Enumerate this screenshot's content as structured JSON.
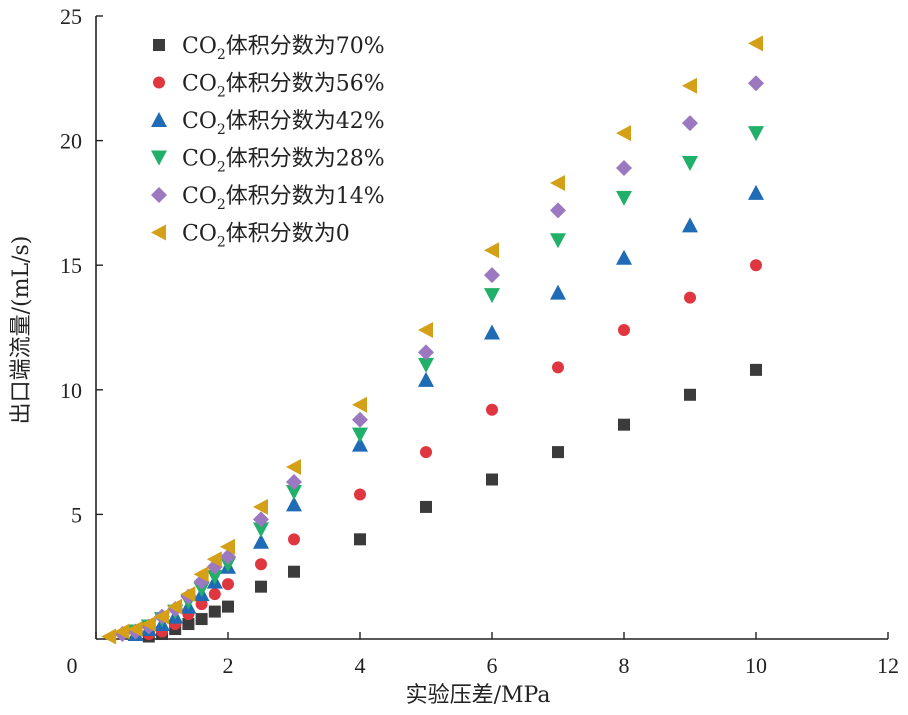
{
  "chart_data": {
    "type": "scatter",
    "title": "",
    "xlabel": "实验压差/MPa",
    "ylabel": "出口端流量/(mL/s)",
    "xlim": [
      0,
      12
    ],
    "ylim": [
      0,
      25
    ],
    "xticks": [
      0,
      2,
      4,
      6,
      8,
      10,
      12
    ],
    "yticks": [
      5,
      10,
      15,
      20,
      25
    ],
    "grid": false,
    "legend_position": "top-left",
    "series": [
      {
        "name": "CO2体积分数为70%",
        "legend_main": "CO",
        "legend_sub": "2",
        "legend_rest": "体积分数为70%",
        "marker": "square",
        "color": "#3b3b3b",
        "x": [
          0.8,
          1.0,
          1.2,
          1.4,
          1.6,
          1.8,
          2.0,
          2.5,
          3.0,
          4.0,
          5.0,
          6.0,
          7.0,
          8.0,
          9.0,
          10.0
        ],
        "y": [
          0.1,
          0.2,
          0.4,
          0.6,
          0.8,
          1.1,
          1.3,
          2.1,
          2.7,
          4.0,
          5.3,
          6.4,
          7.5,
          8.6,
          9.8,
          10.8
        ]
      },
      {
        "name": "CO2体积分数为56%",
        "legend_main": "CO",
        "legend_sub": "2",
        "legend_rest": "体积分数为56%",
        "marker": "circle",
        "color": "#e0363f",
        "x": [
          0.8,
          1.0,
          1.2,
          1.4,
          1.6,
          1.8,
          2.0,
          2.5,
          3.0,
          4.0,
          5.0,
          6.0,
          7.0,
          8.0,
          9.0,
          10.0
        ],
        "y": [
          0.2,
          0.3,
          0.6,
          1.0,
          1.4,
          1.8,
          2.2,
          3.0,
          4.0,
          5.8,
          7.5,
          9.2,
          10.9,
          12.4,
          13.7,
          15.0
        ]
      },
      {
        "name": "CO2体积分数为42%",
        "legend_main": "CO",
        "legend_sub": "2",
        "legend_rest": "体积分数为42%",
        "marker": "triangle-up",
        "color": "#1f6bb5",
        "x": [
          0.6,
          0.8,
          1.0,
          1.2,
          1.4,
          1.6,
          1.8,
          2.0,
          2.5,
          3.0,
          4.0,
          5.0,
          6.0,
          7.0,
          8.0,
          9.0,
          10.0
        ],
        "y": [
          0.2,
          0.4,
          0.6,
          0.9,
          1.3,
          1.8,
          2.3,
          2.9,
          3.9,
          5.4,
          7.8,
          10.4,
          12.3,
          13.9,
          15.3,
          16.6,
          17.9
        ]
      },
      {
        "name": "CO2体积分数为28%",
        "legend_main": "CO",
        "legend_sub": "2",
        "legend_rest": "体积分数为28%",
        "marker": "triangle-down",
        "color": "#20b06a",
        "x": [
          0.6,
          0.8,
          1.0,
          1.2,
          1.4,
          1.6,
          1.8,
          2.0,
          2.5,
          3.0,
          4.0,
          5.0,
          6.0,
          7.0,
          8.0,
          9.0,
          10.0
        ],
        "y": [
          0.3,
          0.5,
          0.8,
          1.1,
          1.5,
          2.0,
          2.5,
          3.0,
          4.4,
          5.9,
          8.2,
          11.0,
          13.8,
          16.0,
          17.7,
          19.1,
          20.3
        ]
      },
      {
        "name": "CO2体积分数为14%",
        "legend_main": "CO",
        "legend_sub": "2",
        "legend_rest": "体积分数为14%",
        "marker": "diamond",
        "color": "#9b78bf",
        "x": [
          0.4,
          0.6,
          0.8,
          1.0,
          1.2,
          1.4,
          1.6,
          1.8,
          2.0,
          2.5,
          3.0,
          4.0,
          5.0,
          6.0,
          7.0,
          8.0,
          9.0,
          10.0
        ],
        "y": [
          0.2,
          0.3,
          0.5,
          0.9,
          1.2,
          1.7,
          2.3,
          2.9,
          3.3,
          4.8,
          6.3,
          8.8,
          11.5,
          14.6,
          17.2,
          18.9,
          20.7,
          22.3
        ]
      },
      {
        "name": "CO2体积分数为0",
        "legend_main": "CO",
        "legend_sub": "2",
        "legend_rest": "体积分数为0",
        "marker": "triangle-left",
        "color": "#d4a017",
        "x": [
          0.2,
          0.4,
          0.6,
          0.8,
          1.0,
          1.2,
          1.4,
          1.6,
          1.8,
          2.0,
          2.5,
          3.0,
          4.0,
          5.0,
          6.0,
          7.0,
          8.0,
          9.0,
          10.0
        ],
        "y": [
          0.1,
          0.3,
          0.4,
          0.6,
          0.9,
          1.3,
          1.8,
          2.6,
          3.2,
          3.7,
          5.3,
          6.9,
          9.4,
          12.4,
          15.6,
          18.3,
          20.3,
          22.2,
          23.9
        ]
      }
    ]
  }
}
